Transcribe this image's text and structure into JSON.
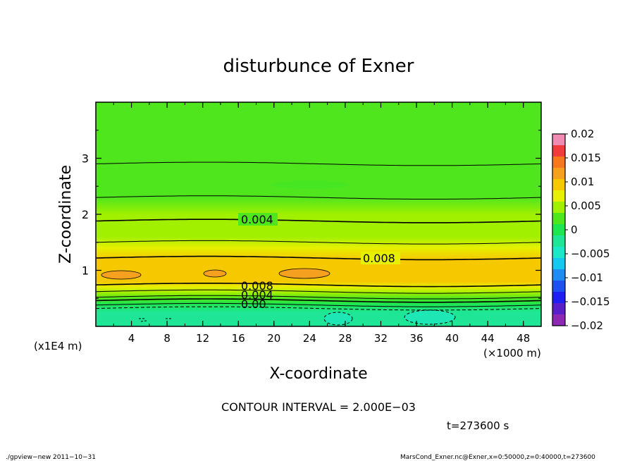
{
  "chart_data": {
    "type": "heatmap",
    "title": "disturbunce of Exner",
    "xlabel": "X-coordinate",
    "ylabel": "Z-coordinate",
    "x_unit_label": "(×1000 m)",
    "y_unit_label": "(x1E4 m)",
    "x_ticks": [
      4,
      8,
      12,
      16,
      20,
      24,
      28,
      32,
      36,
      40,
      44,
      48
    ],
    "y_ticks": [
      1,
      2,
      3
    ],
    "xlim": [
      0,
      50
    ],
    "ylim": [
      0,
      4
    ],
    "colorbar": {
      "ticks": [
        "0.02",
        "0.015",
        "0.01",
        "0.005",
        "0",
        "−0.005",
        "−0.01",
        "−0.015",
        "−0.02"
      ],
      "range": [
        -0.02,
        0.02
      ],
      "colors": [
        "#f08cb4",
        "#f03c3c",
        "#f5781e",
        "#f5a01e",
        "#f5c800",
        "#e6f000",
        "#a0f000",
        "#50e61e",
        "#1ee650",
        "#1ee696",
        "#1ee6c8",
        "#14c8f0",
        "#1e8cf0",
        "#1e50f0",
        "#1e1ef0",
        "#5a1ec8",
        "#8c28b4"
      ]
    },
    "profile": {
      "z": [
        0.0,
        0.25,
        0.4,
        0.5,
        0.6,
        0.7,
        0.8,
        0.9,
        1.0,
        1.1,
        1.2,
        1.4,
        1.6,
        1.8,
        2.0,
        2.3,
        2.6,
        3.0,
        3.5,
        4.0
      ],
      "value": [
        -0.003,
        -0.002,
        0.0,
        0.002,
        0.005,
        0.008,
        0.0095,
        0.0105,
        0.0105,
        0.0095,
        0.0085,
        0.0065,
        0.0055,
        0.0045,
        0.004,
        0.0033,
        0.0027,
        0.0022,
        0.0018,
        0.0015
      ]
    },
    "contour_labels": [
      "0.004",
      "0.008",
      "0.008",
      "0.004",
      "0.00"
    ],
    "contour_interval": "CONTOUR INTERVAL = 2.000E−03",
    "time_label": "t=273600 s"
  },
  "footer": {
    "left": "./gpview−new  2011−10−31",
    "right": "MarsCond_Exner.nc@Exner,x=0:50000,z=0:40000,t=273600"
  }
}
